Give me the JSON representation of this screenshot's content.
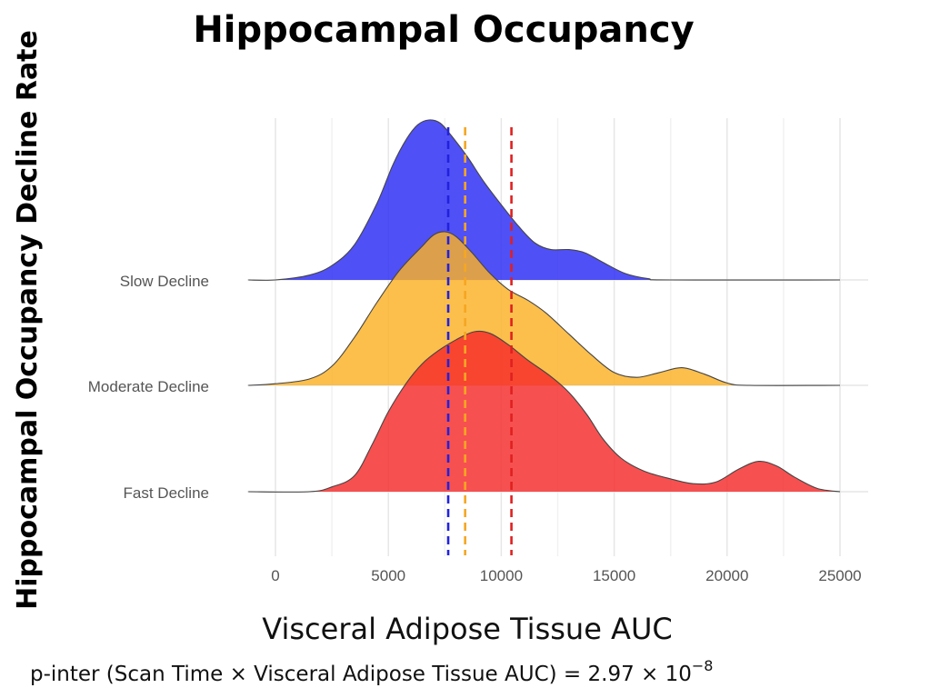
{
  "chart_data": {
    "type": "ridgeline",
    "title": "Hippocampal Occupancy",
    "xlabel": "Visceral Adipose Tissue AUC",
    "ylabel": "Hippocampal Occupancy Decline Rate",
    "xlim": [
      -1200,
      25200
    ],
    "x_ticks": [
      0,
      5000,
      10000,
      15000,
      20000,
      25000
    ],
    "x_tick_labels": [
      "0",
      "5000",
      "10000",
      "15000",
      "20000",
      "25000"
    ],
    "grid": true,
    "footnote": {
      "main": "p-inter (Scan Time × Visceral Adipose Tissue AUC) = 2.97 × 10",
      "exponent": "−8"
    },
    "series": [
      {
        "name": "Slow Decline",
        "color": "#2a2af5",
        "density": [
          [
            -1200,
            0
          ],
          [
            0,
            0
          ],
          [
            1500,
            0.03
          ],
          [
            2500,
            0.09
          ],
          [
            3500,
            0.22
          ],
          [
            4500,
            0.48
          ],
          [
            5200,
            0.72
          ],
          [
            5800,
            0.88
          ],
          [
            6300,
            0.97
          ],
          [
            6800,
            1.0
          ],
          [
            7300,
            0.98
          ],
          [
            7800,
            0.9
          ],
          [
            8500,
            0.77
          ],
          [
            9200,
            0.62
          ],
          [
            10000,
            0.47
          ],
          [
            10800,
            0.33
          ],
          [
            11500,
            0.23
          ],
          [
            12200,
            0.19
          ],
          [
            13000,
            0.19
          ],
          [
            13700,
            0.17
          ],
          [
            14500,
            0.11
          ],
          [
            15500,
            0.04
          ],
          [
            16500,
            0.008
          ],
          [
            17500,
            0
          ],
          [
            25000,
            0
          ]
        ]
      },
      {
        "name": "Moderate Decline",
        "color": "#fbb124",
        "density": [
          [
            -1200,
            0
          ],
          [
            0,
            0.01
          ],
          [
            1500,
            0.04
          ],
          [
            2500,
            0.12
          ],
          [
            3500,
            0.3
          ],
          [
            4500,
            0.52
          ],
          [
            5500,
            0.72
          ],
          [
            6500,
            0.87
          ],
          [
            7000,
            0.94
          ],
          [
            7500,
            0.96
          ],
          [
            8000,
            0.93
          ],
          [
            8700,
            0.83
          ],
          [
            9500,
            0.7
          ],
          [
            10300,
            0.6
          ],
          [
            11200,
            0.53
          ],
          [
            12000,
            0.45
          ],
          [
            13000,
            0.32
          ],
          [
            14000,
            0.19
          ],
          [
            15000,
            0.08
          ],
          [
            16000,
            0.05
          ],
          [
            17000,
            0.08
          ],
          [
            18000,
            0.11
          ],
          [
            19000,
            0.07
          ],
          [
            20000,
            0.015
          ],
          [
            21000,
            0
          ],
          [
            25000,
            0
          ]
        ]
      },
      {
        "name": "Fast Decline",
        "color": "#f52a2a",
        "density": [
          [
            -1200,
            0
          ],
          [
            1500,
            0
          ],
          [
            2500,
            0.03
          ],
          [
            3500,
            0.1
          ],
          [
            4300,
            0.3
          ],
          [
            5000,
            0.5
          ],
          [
            5800,
            0.68
          ],
          [
            6500,
            0.8
          ],
          [
            7200,
            0.88
          ],
          [
            8000,
            0.95
          ],
          [
            8800,
            1.0
          ],
          [
            9500,
            0.99
          ],
          [
            10300,
            0.92
          ],
          [
            11200,
            0.82
          ],
          [
            12200,
            0.72
          ],
          [
            13000,
            0.62
          ],
          [
            13800,
            0.48
          ],
          [
            14500,
            0.33
          ],
          [
            15300,
            0.21
          ],
          [
            16300,
            0.13
          ],
          [
            17500,
            0.08
          ],
          [
            18500,
            0.05
          ],
          [
            19500,
            0.06
          ],
          [
            20500,
            0.14
          ],
          [
            21400,
            0.19
          ],
          [
            22200,
            0.16
          ],
          [
            23000,
            0.09
          ],
          [
            24000,
            0.02
          ],
          [
            25000,
            0
          ]
        ]
      }
    ],
    "reference_lines": [
      {
        "x": 7650,
        "color": "#2222dd"
      },
      {
        "x": 8400,
        "color": "#f5a623"
      },
      {
        "x": 10450,
        "color": "#e02020"
      }
    ]
  }
}
